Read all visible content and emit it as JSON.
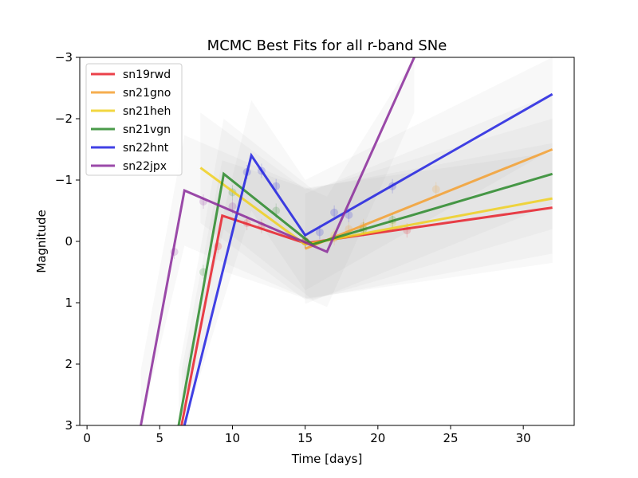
{
  "chart_data": {
    "type": "line",
    "title": "MCMC Best Fits for all r-band SNe",
    "xlabel": "Time [days]",
    "ylabel": "Magnitude",
    "xlim": [
      -0.5,
      33.5
    ],
    "ylim": [
      3,
      -3
    ],
    "y_inverted": true,
    "grid": false,
    "legend_position": "top-left",
    "x_ticks": [
      "0",
      "5",
      "10",
      "15",
      "20",
      "25",
      "30"
    ],
    "y_ticks": [
      "−3",
      "−2",
      "−1",
      "0",
      "1",
      "2",
      "3"
    ],
    "series": [
      {
        "name": "sn19rwd",
        "color": "#e8202a",
        "x": [
          6.5,
          9.3,
          15.0,
          32.0
        ],
        "y": [
          3.0,
          -0.42,
          0.03,
          -0.55
        ],
        "obs_x": [
          9.0,
          11.0,
          12.0,
          15.0,
          22.0
        ],
        "obs_y": [
          0.08,
          -0.3,
          -0.25,
          0.0,
          -0.18
        ]
      },
      {
        "name": "sn21gno",
        "color": "#f5a030",
        "x": [
          15.0,
          32.0
        ],
        "y": [
          0.12,
          -1.5
        ],
        "obs_x": [
          15.0,
          17.0,
          18.0,
          19.0,
          24.0
        ],
        "obs_y": [
          0.0,
          -0.05,
          -0.2,
          -0.25,
          -0.85
        ]
      },
      {
        "name": "sn21heh",
        "color": "#f0d020",
        "x": [
          7.8,
          15.0,
          32.0
        ],
        "y": [
          -1.2,
          0.05,
          -0.7
        ],
        "obs_x": [
          15.0,
          17.0,
          19.0,
          21.0
        ],
        "obs_y": [
          0.0,
          -0.1,
          -0.2,
          -0.3
        ]
      },
      {
        "name": "sn21vgn",
        "color": "#2a8a2a",
        "x": [
          6.3,
          9.4,
          15.5,
          32.0
        ],
        "y": [
          3.0,
          -1.1,
          0.05,
          -1.1
        ],
        "obs_x": [
          8.0,
          10.0,
          13.0,
          15.0,
          19.0,
          21.0
        ],
        "obs_y": [
          0.5,
          -0.8,
          -0.5,
          0.0,
          -0.2,
          -0.35
        ]
      },
      {
        "name": "sn22hnt",
        "color": "#2020e0",
        "x": [
          6.7,
          11.3,
          15.0,
          32.0
        ],
        "y": [
          3.0,
          -1.4,
          -0.1,
          -2.4
        ],
        "obs_x": [
          11.0,
          12.0,
          13.0,
          16.0,
          17.0,
          18.0,
          21.0
        ],
        "obs_y": [
          -1.13,
          -1.15,
          -0.9,
          -0.15,
          -0.47,
          -0.43,
          -0.9
        ]
      },
      {
        "name": "sn22jpx",
        "color": "#8a2a9a",
        "x": [
          3.7,
          6.7,
          16.5,
          22.5
        ],
        "y": [
          3.0,
          -0.83,
          0.17,
          -3.0
        ],
        "obs_x": [
          6.0,
          8.0,
          10.0,
          15.0
        ],
        "obs_y": [
          0.17,
          -0.65,
          -0.57,
          0.0
        ]
      }
    ]
  }
}
